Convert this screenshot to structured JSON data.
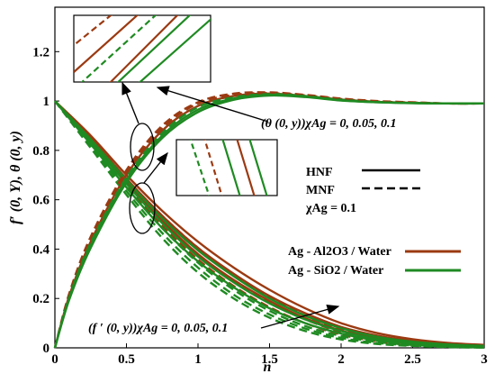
{
  "chart_data": {
    "type": "line",
    "xlabel": "n",
    "ylabel": "f′ (0, Y),   θ (0, y)",
    "xlim": [
      0,
      3
    ],
    "ylim": [
      0,
      1.38
    ],
    "xticks": [
      "0",
      "0.5",
      "1",
      "1.5",
      "2",
      "2.5",
      "3"
    ],
    "yticks": [
      "0",
      "0.2",
      "0.4",
      "0.6",
      "0.8",
      "1",
      "1.2"
    ],
    "xtick_values": [
      0,
      0.5,
      1,
      1.5,
      2,
      2.5,
      3
    ],
    "ytick_values": [
      0,
      0.2,
      0.4,
      0.6,
      0.8,
      1,
      1.2
    ],
    "colors": {
      "al2o3": "#9b3a12",
      "sio2": "#1f8a22",
      "black": "#000000"
    },
    "legend": {
      "solid_label": "HNF",
      "dashed_label": "MNF",
      "chi_label": "χAg = 0.1",
      "series1_label": "Ag - Al2O3 / Water",
      "series2_label": "Ag - SiO2 / Water"
    },
    "annotations": {
      "theta": "(θ (0, y))χAg = 0, 0.05, 0.1",
      "fprime": "(f ′ (0, y))χAg = 0, 0.05, 0.1"
    },
    "chi_values": [
      0,
      0.05,
      0.1
    ],
    "velocity_x": [
      0,
      0.25,
      0.5,
      0.75,
      1,
      1.25,
      1.5,
      1.75,
      2,
      2.25,
      2.5,
      2.75,
      3
    ],
    "velocity_series": [
      {
        "fluid": "Ag-Al2O3/Water",
        "style": "solid",
        "chi": 0,
        "values": [
          1.0,
          0.86,
          0.7,
          0.555,
          0.43,
          0.325,
          0.235,
          0.16,
          0.1,
          0.06,
          0.035,
          0.02,
          0.012
        ]
      },
      {
        "fluid": "Ag-Al2O3/Water",
        "style": "solid",
        "chi": 0.05,
        "values": [
          1.0,
          0.85,
          0.685,
          0.535,
          0.405,
          0.3,
          0.21,
          0.14,
          0.085,
          0.05,
          0.028,
          0.016,
          0.01
        ]
      },
      {
        "fluid": "Ag-Al2O3/Water",
        "style": "solid",
        "chi": 0.1,
        "values": [
          1.0,
          0.84,
          0.67,
          0.515,
          0.38,
          0.275,
          0.19,
          0.12,
          0.07,
          0.04,
          0.022,
          0.012,
          0.008
        ]
      },
      {
        "fluid": "Ag-Al2O3/Water",
        "style": "dashed",
        "chi": 0,
        "values": [
          1.0,
          0.85,
          0.685,
          0.535,
          0.405,
          0.295,
          0.205,
          0.13,
          0.075,
          0.04,
          0.02,
          0.01,
          0.004
        ]
      },
      {
        "fluid": "Ag-Al2O3/Water",
        "style": "dashed",
        "chi": 0.05,
        "values": [
          1.0,
          0.84,
          0.67,
          0.515,
          0.38,
          0.272,
          0.185,
          0.115,
          0.064,
          0.032,
          0.016,
          0.008,
          0.003
        ]
      },
      {
        "fluid": "Ag-Al2O3/Water",
        "style": "dashed",
        "chi": 0.1,
        "values": [
          1.0,
          0.83,
          0.655,
          0.495,
          0.358,
          0.25,
          0.165,
          0.1,
          0.054,
          0.026,
          0.012,
          0.006,
          0.002
        ]
      },
      {
        "fluid": "Ag-SiO2/Water",
        "style": "solid",
        "chi": 0,
        "values": [
          1.0,
          0.845,
          0.68,
          0.525,
          0.395,
          0.29,
          0.2,
          0.13,
          0.08,
          0.045,
          0.025,
          0.014,
          0.008
        ]
      },
      {
        "fluid": "Ag-SiO2/Water",
        "style": "solid",
        "chi": 0.05,
        "values": [
          1.0,
          0.835,
          0.665,
          0.505,
          0.37,
          0.265,
          0.18,
          0.115,
          0.068,
          0.036,
          0.02,
          0.01,
          0.006
        ]
      },
      {
        "fluid": "Ag-SiO2/Water",
        "style": "solid",
        "chi": 0.1,
        "values": [
          1.0,
          0.825,
          0.65,
          0.485,
          0.35,
          0.245,
          0.16,
          0.1,
          0.058,
          0.03,
          0.016,
          0.008,
          0.004
        ]
      },
      {
        "fluid": "Ag-SiO2/Water",
        "style": "dashed",
        "chi": 0,
        "values": [
          1.0,
          0.83,
          0.65,
          0.485,
          0.345,
          0.235,
          0.15,
          0.088,
          0.048,
          0.024,
          0.012,
          0.005,
          0.002
        ]
      },
      {
        "fluid": "Ag-SiO2/Water",
        "style": "dashed",
        "chi": 0.05,
        "values": [
          1.0,
          0.82,
          0.635,
          0.465,
          0.325,
          0.215,
          0.135,
          0.078,
          0.04,
          0.02,
          0.01,
          0.004,
          0.001
        ]
      },
      {
        "fluid": "Ag-SiO2/Water",
        "style": "dashed",
        "chi": 0.1,
        "values": [
          1.0,
          0.81,
          0.62,
          0.445,
          0.305,
          0.2,
          0.122,
          0.068,
          0.034,
          0.016,
          0.008,
          0.003,
          0.001
        ]
      }
    ],
    "temperature_x": [
      0,
      0.1,
      0.25,
      0.5,
      0.75,
      1,
      1.25,
      1.5,
      1.75,
      2,
      2.25,
      2.5,
      2.75,
      3
    ],
    "temperature_series": [
      {
        "fluid": "Ag-Al2O3/Water",
        "style": "dashed",
        "chi": 0.1,
        "values": [
          0,
          0.22,
          0.45,
          0.72,
          0.9,
          0.995,
          1.03,
          1.035,
          1.025,
          1.01,
          1.0,
          0.995,
          0.99,
          0.99
        ]
      },
      {
        "fluid": "Ag-Al2O3/Water",
        "style": "dashed",
        "chi": 0.05,
        "values": [
          0,
          0.215,
          0.44,
          0.71,
          0.89,
          0.99,
          1.025,
          1.032,
          1.023,
          1.008,
          0.998,
          0.994,
          0.99,
          0.99
        ]
      },
      {
        "fluid": "Ag-Al2O3/Water",
        "style": "solid",
        "chi": 0,
        "values": [
          0,
          0.21,
          0.43,
          0.7,
          0.88,
          0.98,
          1.02,
          1.03,
          1.02,
          1.006,
          0.997,
          0.993,
          0.99,
          0.99
        ]
      },
      {
        "fluid": "Ag-SiO2/Water",
        "style": "dashed",
        "chi": 0.1,
        "values": [
          0,
          0.205,
          0.425,
          0.69,
          0.87,
          0.975,
          1.015,
          1.028,
          1.02,
          1.005,
          0.996,
          0.992,
          0.99,
          0.99
        ]
      },
      {
        "fluid": "Ag-SiO2/Water",
        "style": "solid",
        "chi": 0.05,
        "values": [
          0,
          0.2,
          0.415,
          0.68,
          0.86,
          0.965,
          1.01,
          1.025,
          1.018,
          1.003,
          0.995,
          0.992,
          0.99,
          0.99
        ]
      },
      {
        "fluid": "Ag-SiO2/Water",
        "style": "solid",
        "chi": 0,
        "values": [
          0,
          0.195,
          0.405,
          0.67,
          0.85,
          0.955,
          1.005,
          1.022,
          1.016,
          1.002,
          0.995,
          0.991,
          0.99,
          0.99
        ]
      }
    ]
  }
}
